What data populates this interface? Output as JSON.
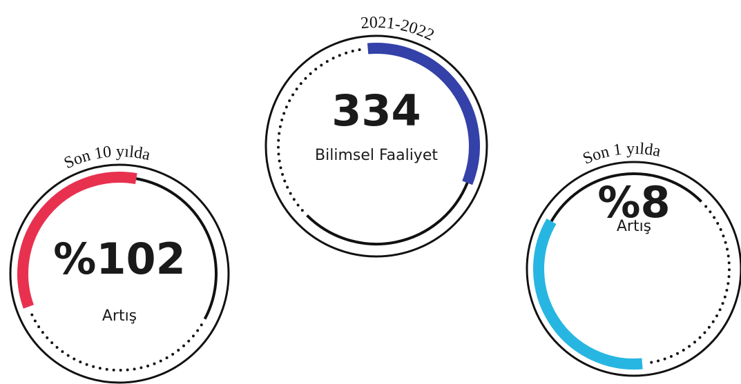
{
  "items": [
    {
      "caption": "Son 10 yılda",
      "value": "%102",
      "label": "Artış",
      "color": "#e8314f"
    },
    {
      "caption": "2021-2022",
      "value": "334",
      "label": "Bilimsel Faaliyet",
      "color": "#3341a8"
    },
    {
      "caption": "Son 1 yılda",
      "value": "%8",
      "label": "Artış",
      "color": "#27b6e2"
    }
  ]
}
